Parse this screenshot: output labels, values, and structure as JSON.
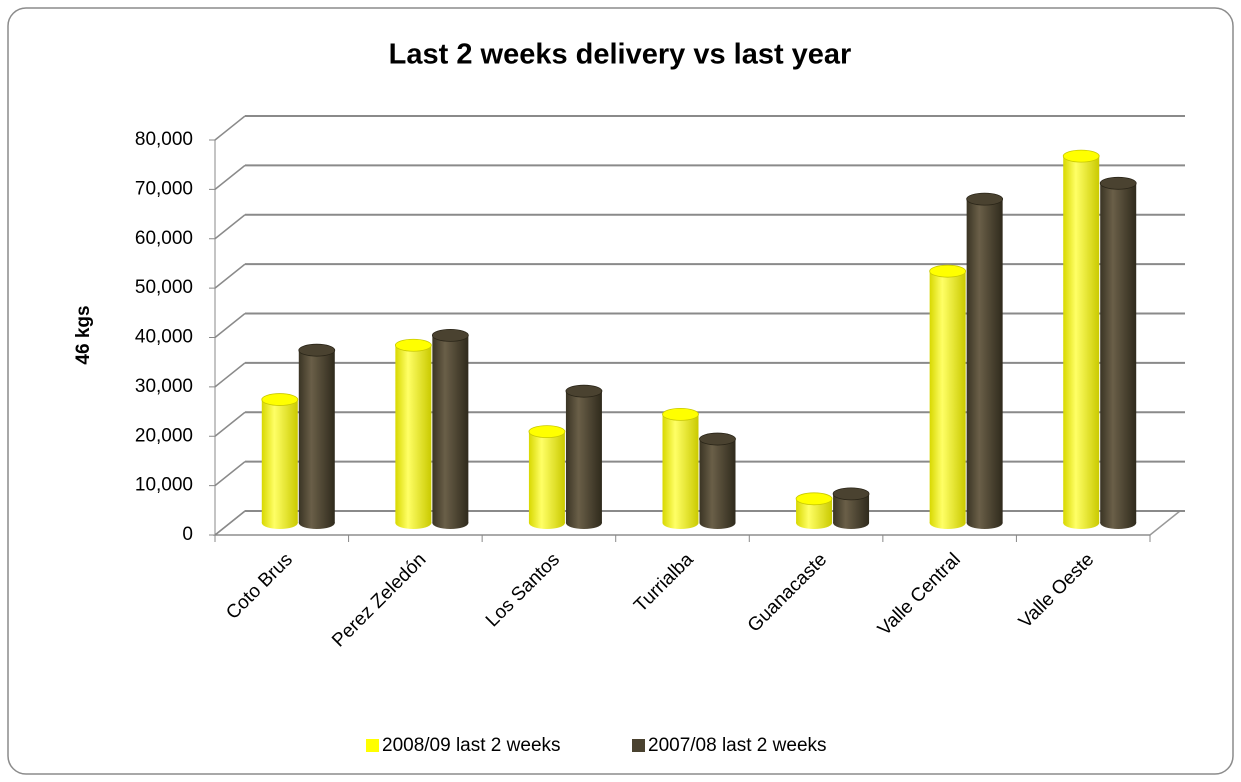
{
  "chart_data": {
    "type": "bar3d",
    "title": "Last 2 weeks delivery vs last year",
    "y_label": "46 kgs",
    "categories": [
      "Coto Brus",
      "Perez Zeledón",
      "Los Santos",
      "Turrialba",
      "Guanacaste",
      "Valle Central",
      "Valle Oeste"
    ],
    "series": [
      {
        "name": "2008/09 last 2 weeks",
        "color": "#ffff00",
        "values": [
          25000,
          36000,
          18500,
          22000,
          4900,
          51000,
          74300
        ]
      },
      {
        "name": "2007/08 last 2 weeks",
        "color": "#4a4230",
        "values": [
          35000,
          38000,
          26700,
          17000,
          5900,
          65600,
          68800
        ]
      }
    ],
    "ylim": [
      0,
      80000
    ],
    "yticks": [
      0,
      {
        "value": 10000,
        "label": "10,000"
      },
      {
        "value": 20000,
        "label": "20,000"
      },
      {
        "value": 30000,
        "label": "30,000"
      },
      {
        "value": 40000,
        "label": "40,000"
      },
      {
        "value": 50000,
        "label": "50,000"
      },
      {
        "value": 60000,
        "label": "60,000"
      },
      {
        "value": 70000,
        "label": "70,000"
      },
      {
        "value": 80000,
        "label": "80,000"
      }
    ],
    "grid": true,
    "legend": "bottom"
  }
}
